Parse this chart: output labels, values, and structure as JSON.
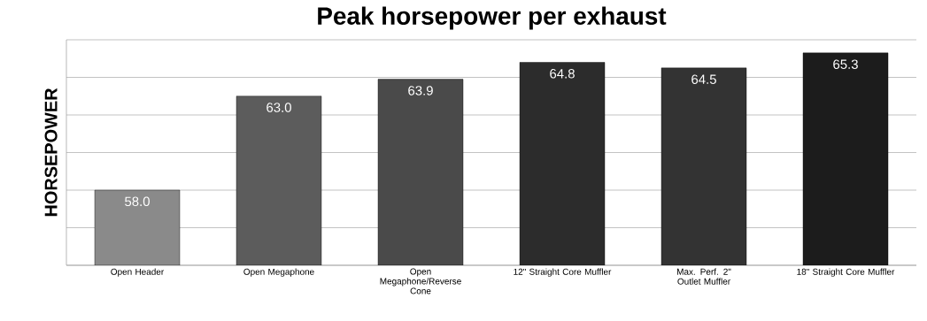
{
  "chart_data": {
    "type": "bar",
    "title": "Peak horsepower per exhaust",
    "ylabel": "HORSEPOWER",
    "categories": [
      "Open Header",
      "Open Megaphone",
      "Open Megaphone/Reverse Cone",
      "12\" Straight Core Muffler",
      "Max. Perf. 2\" Outlet Muffler",
      "18\" Straight Core Muffler"
    ],
    "values": [
      58.0,
      63.0,
      63.9,
      64.8,
      64.5,
      65.3
    ],
    "colors": [
      "#8a8a8a",
      "#5c5c5c",
      "#4a4a4a",
      "#2c2c2c",
      "#333333",
      "#1c1c1c"
    ],
    "ylim": [
      54,
      66
    ],
    "yticks": [
      {
        "value": 54,
        "label": null
      },
      {
        "value": 56,
        "label": null
      },
      {
        "value": 58,
        "label": null
      },
      {
        "value": 60,
        "label": null
      },
      {
        "value": 62,
        "label": null
      },
      {
        "value": 64,
        "label": null
      },
      {
        "value": 66,
        "label": null
      }
    ],
    "value_labels": [
      "58.0",
      "63.0",
      "63.9",
      "64.8",
      "64.5",
      "65.3"
    ],
    "grid": "y",
    "tick_labels": "x"
  }
}
